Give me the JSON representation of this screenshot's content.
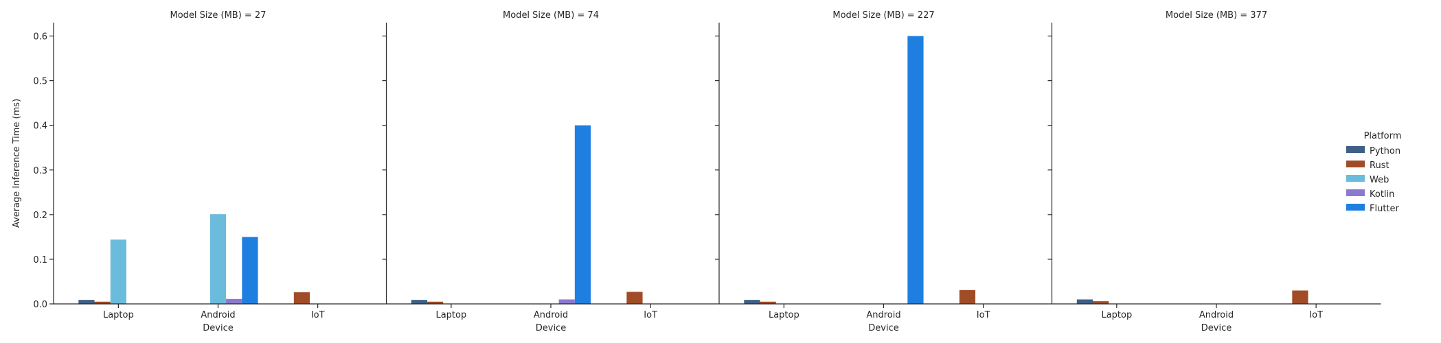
{
  "chart_data": {
    "type": "bar",
    "facet_label": "Model Size (MB)",
    "facets": [
      {
        "title": "Model Size (MB) = 27",
        "categories": [
          "Laptop",
          "Android",
          "IoT"
        ],
        "series": [
          {
            "name": "Python",
            "values": [
              0.009,
              null,
              null
            ]
          },
          {
            "name": "Rust",
            "values": [
              0.005,
              null,
              0.026
            ]
          },
          {
            "name": "Web",
            "values": [
              0.144,
              0.201,
              null
            ]
          },
          {
            "name": "Kotlin",
            "values": [
              null,
              0.011,
              null
            ]
          },
          {
            "name": "Flutter",
            "values": [
              null,
              0.15,
              null
            ]
          }
        ]
      },
      {
        "title": "Model Size (MB) = 74",
        "categories": [
          "Laptop",
          "Android",
          "IoT"
        ],
        "series": [
          {
            "name": "Python",
            "values": [
              0.009,
              null,
              null
            ]
          },
          {
            "name": "Rust",
            "values": [
              0.005,
              null,
              0.027
            ]
          },
          {
            "name": "Web",
            "values": [
              null,
              null,
              null
            ]
          },
          {
            "name": "Kotlin",
            "values": [
              null,
              0.01,
              null
            ]
          },
          {
            "name": "Flutter",
            "values": [
              null,
              0.4,
              null
            ]
          }
        ]
      },
      {
        "title": "Model Size (MB) = 227",
        "categories": [
          "Laptop",
          "Android",
          "IoT"
        ],
        "series": [
          {
            "name": "Python",
            "values": [
              0.009,
              null,
              null
            ]
          },
          {
            "name": "Rust",
            "values": [
              0.005,
              null,
              0.031
            ]
          },
          {
            "name": "Web",
            "values": [
              null,
              null,
              null
            ]
          },
          {
            "name": "Kotlin",
            "values": [
              null,
              null,
              null
            ]
          },
          {
            "name": "Flutter",
            "values": [
              null,
              0.6,
              null
            ]
          }
        ]
      },
      {
        "title": "Model Size (MB) = 377",
        "categories": [
          "Laptop",
          "Android",
          "IoT"
        ],
        "series": [
          {
            "name": "Python",
            "values": [
              0.01,
              null,
              null
            ]
          },
          {
            "name": "Rust",
            "values": [
              0.006,
              null,
              0.03
            ]
          },
          {
            "name": "Web",
            "values": [
              null,
              null,
              null
            ]
          },
          {
            "name": "Kotlin",
            "values": [
              null,
              null,
              null
            ]
          },
          {
            "name": "Flutter",
            "values": [
              null,
              null,
              null
            ]
          }
        ]
      }
    ],
    "xlabel": "Device",
    "ylabel": "Average Inference Time (ms)",
    "ylim": [
      0,
      0.63
    ],
    "yticks": [
      0.0,
      0.1,
      0.2,
      0.3,
      0.4,
      0.5,
      0.6
    ],
    "ytick_labels": [
      "0.0",
      "0.1",
      "0.2",
      "0.3",
      "0.4",
      "0.5",
      "0.6"
    ],
    "shared_y": true,
    "grid": false,
    "legend": {
      "title": "Platform",
      "placement": "right",
      "entries": [
        "Python",
        "Rust",
        "Web",
        "Kotlin",
        "Flutter"
      ]
    },
    "colors": {
      "Python": "#3f5f86",
      "Rust": "#a04c27",
      "Web": "#6bbcdc",
      "Kotlin": "#8c78cf",
      "Flutter": "#1f7fe0"
    }
  }
}
